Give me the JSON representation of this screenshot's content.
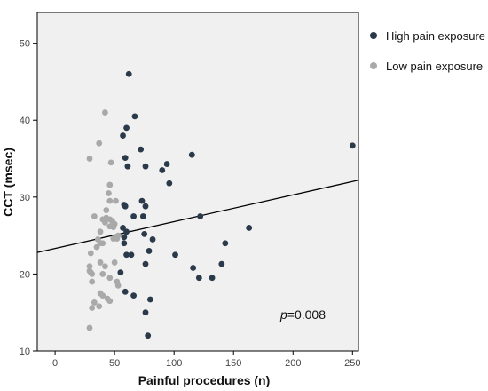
{
  "chart_data": {
    "type": "scatter",
    "xlabel": "Painful procedures (n)",
    "ylabel": "CCT (msec)",
    "xlim": [
      -15,
      255
    ],
    "ylim": [
      10,
      54
    ],
    "x_ticks": [
      0,
      50,
      100,
      150,
      200,
      250
    ],
    "y_ticks": [
      10,
      20,
      30,
      40,
      50
    ],
    "grid": false,
    "legend_position": "right",
    "annotation": {
      "prefix": "p",
      "text": "=0.008"
    },
    "fit_line": {
      "x": [
        -15,
        255
      ],
      "y": [
        22.8,
        32.2
      ]
    },
    "series": [
      {
        "name": "High pain exposure",
        "color": "#2b3a4a",
        "points": [
          [
            62,
            46
          ],
          [
            67,
            40.5
          ],
          [
            60,
            39
          ],
          [
            57,
            38
          ],
          [
            72,
            36.2
          ],
          [
            59,
            35.1
          ],
          [
            61,
            34
          ],
          [
            76,
            34
          ],
          [
            90,
            33.5
          ],
          [
            94,
            34.3
          ],
          [
            115,
            35.5
          ],
          [
            96,
            31.8
          ],
          [
            250,
            36.7
          ],
          [
            73,
            29.5
          ],
          [
            58,
            29
          ],
          [
            59,
            28.8
          ],
          [
            76,
            28.8
          ],
          [
            66,
            27.5
          ],
          [
            74,
            27.5
          ],
          [
            122,
            27.5
          ],
          [
            57,
            26
          ],
          [
            163,
            26
          ],
          [
            60,
            25.5
          ],
          [
            75,
            25.2
          ],
          [
            58,
            24.8
          ],
          [
            82,
            24.5
          ],
          [
            58,
            24
          ],
          [
            143,
            24
          ],
          [
            79,
            23
          ],
          [
            60,
            22.5
          ],
          [
            64,
            22.5
          ],
          [
            101,
            22.5
          ],
          [
            76,
            21.3
          ],
          [
            140,
            21.3
          ],
          [
            116,
            20.8
          ],
          [
            55,
            20.2
          ],
          [
            121,
            19.5
          ],
          [
            132,
            19.5
          ],
          [
            59,
            17.7
          ],
          [
            66,
            17.2
          ],
          [
            80,
            16.7
          ],
          [
            76,
            15
          ],
          [
            78,
            12
          ]
        ]
      },
      {
        "name": "Low pain exposure",
        "color": "#a9a9a9",
        "points": [
          [
            42,
            41
          ],
          [
            37,
            37
          ],
          [
            29,
            35
          ],
          [
            47,
            34.5
          ],
          [
            46,
            31.6
          ],
          [
            45,
            30.5
          ],
          [
            46,
            29.5
          ],
          [
            51,
            29.5
          ],
          [
            43,
            28.3
          ],
          [
            33,
            27.5
          ],
          [
            40,
            27.1
          ],
          [
            43,
            27.3
          ],
          [
            46,
            27.1
          ],
          [
            48,
            26.9
          ],
          [
            42,
            26.7
          ],
          [
            50,
            26.5
          ],
          [
            46,
            26.2
          ],
          [
            49,
            26.1
          ],
          [
            38,
            25.5
          ],
          [
            53,
            25
          ],
          [
            36,
            24.5
          ],
          [
            49,
            24.6
          ],
          [
            52,
            24.6
          ],
          [
            38,
            24
          ],
          [
            40,
            24
          ],
          [
            35,
            23.5
          ],
          [
            30,
            22.7
          ],
          [
            38,
            21.5
          ],
          [
            50,
            21.5
          ],
          [
            29,
            21
          ],
          [
            42,
            21
          ],
          [
            29,
            20.4
          ],
          [
            30,
            20.2
          ],
          [
            31,
            20
          ],
          [
            40,
            20
          ],
          [
            46,
            19.5
          ],
          [
            31,
            19
          ],
          [
            52,
            19
          ],
          [
            53,
            18.5
          ],
          [
            38,
            17.5
          ],
          [
            40,
            17.2
          ],
          [
            44,
            16.8
          ],
          [
            46,
            16.5
          ],
          [
            33,
            16.3
          ],
          [
            37,
            15.8
          ],
          [
            31,
            15.6
          ],
          [
            29,
            13
          ]
        ]
      }
    ]
  }
}
